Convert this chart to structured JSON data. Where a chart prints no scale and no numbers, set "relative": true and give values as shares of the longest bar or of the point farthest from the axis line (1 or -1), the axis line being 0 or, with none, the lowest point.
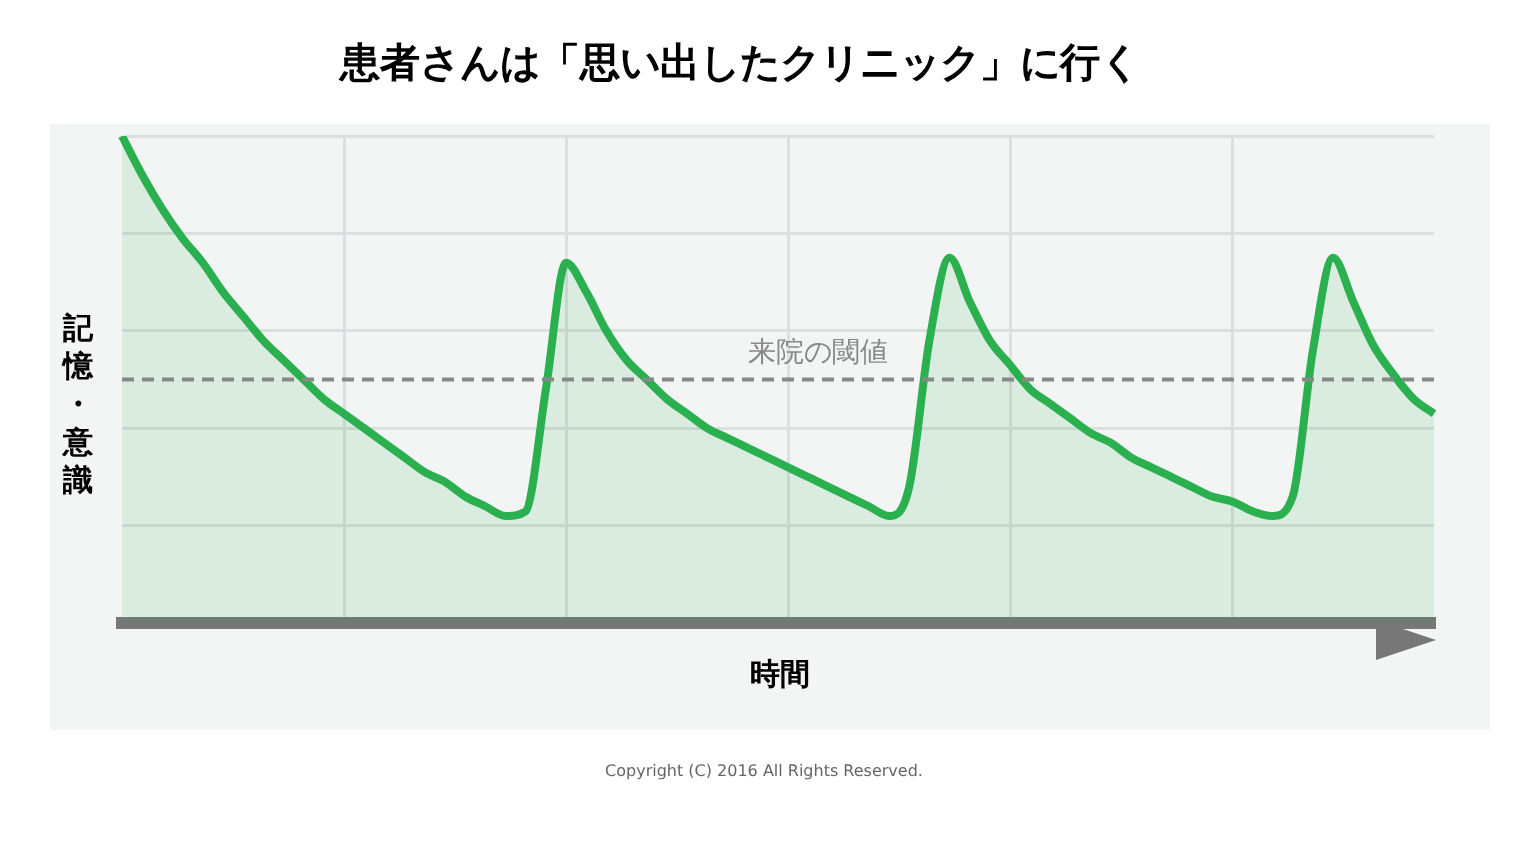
{
  "chart_data": {
    "type": "area",
    "title": "患者さんは「思い出したクリニック」に行く",
    "xlabel": "時間",
    "ylabel": "記憶・意識",
    "relative": true,
    "grid": true,
    "legend": false,
    "marker": "none",
    "categories": [
      null,
      null,
      null,
      null,
      null,
      null,
      null,
      null,
      null,
      null,
      null,
      null,
      null,
      null,
      null,
      null,
      null,
      null,
      null,
      null,
      null,
      null,
      null,
      null,
      null,
      null,
      null,
      null,
      null,
      null,
      null,
      null,
      null,
      null,
      null,
      null,
      null,
      null,
      null,
      null,
      null,
      null,
      null,
      null,
      null,
      null,
      null,
      null,
      null,
      null,
      null,
      null,
      null,
      null,
      null,
      null,
      null,
      null,
      null,
      null,
      null,
      null,
      null,
      null,
      null,
      null
    ],
    "series": [
      {
        "color": "#2bb04f",
        "values": [
          1.0,
          0.92,
          0.85,
          0.79,
          0.74,
          0.68,
          0.63,
          0.58,
          0.54,
          0.5,
          0.46,
          0.43,
          0.4,
          0.37,
          0.34,
          0.31,
          0.29,
          0.26,
          0.24,
          0.22,
          0.23,
          0.48,
          0.74,
          0.68,
          0.6,
          0.54,
          0.5,
          0.46,
          0.43,
          0.4,
          0.38,
          0.36,
          0.34,
          0.32,
          0.3,
          0.28,
          0.26,
          0.24,
          0.22,
          0.28,
          0.58,
          0.75,
          0.66,
          0.58,
          0.53,
          0.48,
          0.45,
          0.42,
          0.39,
          0.37,
          0.34,
          0.32,
          0.3,
          0.28,
          0.26,
          0.25,
          0.23,
          0.22,
          0.26,
          0.56,
          0.75,
          0.66,
          0.57,
          0.51,
          0.46,
          0.43
        ]
      }
    ],
    "ref_lines": [
      {
        "axis": "y",
        "value": 0.5,
        "label": "来院の閾値",
        "color": "#888888",
        "line_style": "dashed"
      }
    ],
    "annotations": [
      "Copyright (C) 2016 All Rights Reserved."
    ]
  }
}
